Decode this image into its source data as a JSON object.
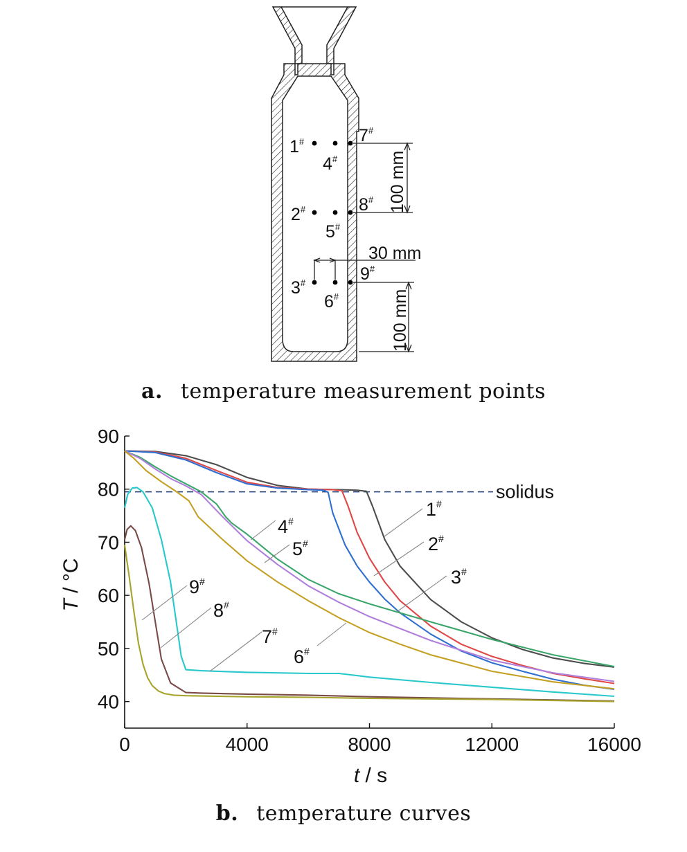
{
  "figure_a": {
    "caption_label": "a.",
    "caption_text": "temperature measurement points",
    "points": [
      {
        "name": "1",
        "mark": "#"
      },
      {
        "name": "4",
        "mark": "#"
      },
      {
        "name": "7",
        "mark": "#"
      },
      {
        "name": "2",
        "mark": "#"
      },
      {
        "name": "5",
        "mark": "#"
      },
      {
        "name": "8",
        "mark": "#"
      },
      {
        "name": "3",
        "mark": "#"
      },
      {
        "name": "6",
        "mark": "#"
      },
      {
        "name": "9",
        "mark": "#"
      }
    ],
    "dim_vertical_1": "100 mm",
    "dim_vertical_2": "100 mm",
    "dim_horizontal": "30 mm"
  },
  "figure_b": {
    "caption_label": "b.",
    "caption_text": "temperature curves"
  },
  "colors": {
    "c1": "#4d4d4d",
    "c2": "#e04848",
    "c3": "#2f6fd0",
    "c4": "#3aa66a",
    "c5": "#b07fdc",
    "c6": "#c4a024",
    "c7": "#28c8cc",
    "c8": "#7a4a46",
    "c9": "#a6a42c",
    "solidus": "#1f3a6e"
  },
  "chart_data": {
    "type": "line",
    "title": "",
    "xlabel_var": "t",
    "xlabel_unit": " / s",
    "ylabel_var": "T",
    "ylabel_unit": " / °C",
    "xlim": [
      0,
      16000
    ],
    "ylim": [
      35,
      90
    ],
    "xticks": [
      0,
      4000,
      8000,
      12000,
      16000
    ],
    "yticks": [
      40,
      50,
      60,
      70,
      80,
      90
    ],
    "reference_line": {
      "label": "solidus",
      "y": 79.5
    },
    "series": [
      {
        "name": "1#",
        "label": "1",
        "mark": "#",
        "color": "#4d4d4d",
        "x": [
          0,
          1000,
          2000,
          3000,
          4000,
          5000,
          6000,
          7000,
          7600,
          7900,
          8100,
          8500,
          9000,
          10000,
          11000,
          12000,
          13000,
          14000,
          15000,
          16000
        ],
        "y": [
          87.2,
          87.1,
          86.3,
          84.6,
          82.2,
          80.7,
          80.0,
          79.9,
          79.8,
          79.6,
          76.8,
          70.5,
          65.5,
          59.2,
          55.0,
          52.0,
          49.8,
          48.2,
          47.2,
          46.5
        ]
      },
      {
        "name": "2#",
        "label": "2",
        "mark": "#",
        "color": "#e04848",
        "x": [
          0,
          1000,
          2000,
          3000,
          4000,
          5000,
          6000,
          6800,
          7100,
          7300,
          7600,
          8000,
          8500,
          9000,
          10000,
          11000,
          12000,
          13000,
          14000,
          15000,
          16000
        ],
        "y": [
          87.2,
          87.0,
          85.8,
          83.5,
          81.3,
          80.3,
          80.0,
          79.9,
          79.7,
          76.8,
          71.8,
          67.0,
          62.5,
          59.0,
          54.2,
          50.8,
          48.5,
          46.8,
          45.3,
          44.3,
          43.4
        ]
      },
      {
        "name": "3#",
        "label": "3",
        "mark": "#",
        "color": "#2f6fd0",
        "x": [
          0,
          1000,
          2000,
          3000,
          4000,
          5000,
          6000,
          6500,
          6650,
          6800,
          7200,
          7600,
          8000,
          8500,
          9000,
          10000,
          11000,
          12000,
          13000,
          14000,
          15000,
          16000
        ],
        "y": [
          87.2,
          86.9,
          85.5,
          83.1,
          81.0,
          80.2,
          79.9,
          79.8,
          79.4,
          75.5,
          69.5,
          65.5,
          62.5,
          59.3,
          56.7,
          52.7,
          49.5,
          47.3,
          45.7,
          44.2,
          43.1,
          42.3
        ]
      },
      {
        "name": "4#",
        "label": "4",
        "mark": "#",
        "color": "#3aa66a",
        "x": [
          0,
          500,
          1000,
          1500,
          2000,
          2500,
          3000,
          3300,
          3500,
          4000,
          5000,
          6000,
          7000,
          8000,
          10000,
          12000,
          14000,
          16000
        ],
        "y": [
          87.2,
          86.0,
          84.2,
          82.5,
          81.0,
          79.5,
          77.2,
          74.8,
          73.6,
          71.5,
          66.8,
          63.0,
          60.3,
          58.4,
          55.0,
          51.7,
          48.8,
          46.6
        ]
      },
      {
        "name": "5#",
        "label": "5",
        "mark": "#",
        "color": "#b07fdc",
        "x": [
          0,
          500,
          1000,
          1500,
          2000,
          2500,
          2800,
          3200,
          4000,
          5000,
          6000,
          7000,
          8000,
          10000,
          12000,
          14000,
          16000
        ],
        "y": [
          87.2,
          85.8,
          83.8,
          82.0,
          80.6,
          79.0,
          77.2,
          74.8,
          70.3,
          65.8,
          61.8,
          58.7,
          56.0,
          51.5,
          47.8,
          45.4,
          43.8
        ]
      },
      {
        "name": "6#",
        "label": "6",
        "mark": "#",
        "color": "#c4a024",
        "x": [
          0,
          300,
          700,
          1200,
          1700,
          2100,
          2400,
          2700,
          3200,
          4000,
          5000,
          6000,
          7000,
          8000,
          9000,
          10000,
          12000,
          14000,
          16000
        ],
        "y": [
          87.2,
          85.8,
          83.5,
          81.4,
          79.5,
          77.8,
          74.8,
          73.2,
          70.5,
          66.5,
          62.5,
          59.0,
          55.8,
          53.0,
          50.8,
          48.8,
          45.7,
          43.7,
          42.4
        ]
      },
      {
        "name": "7#",
        "label": "7",
        "mark": "#",
        "color": "#28c8cc",
        "x": [
          0,
          100,
          250,
          400,
          600,
          900,
          1200,
          1500,
          1700,
          1850,
          2000,
          2500,
          4000,
          6000,
          7000,
          8000,
          10000,
          12000,
          14000,
          16000
        ],
        "y": [
          76.5,
          79.0,
          80.2,
          80.3,
          79.5,
          76.5,
          70.5,
          62.5,
          54.5,
          48.5,
          46.0,
          45.8,
          45.5,
          45.3,
          45.3,
          44.6,
          43.6,
          42.7,
          41.8,
          41.0
        ]
      },
      {
        "name": "8#",
        "label": "8",
        "mark": "#",
        "color": "#7a4a46",
        "x": [
          0,
          80,
          200,
          350,
          550,
          800,
          1000,
          1200,
          1500,
          2000,
          2500,
          4000,
          6000,
          8000,
          10000,
          12000,
          14000,
          16000
        ],
        "y": [
          70.5,
          72.4,
          73.1,
          72.2,
          69.0,
          62.2,
          55.0,
          48.0,
          43.5,
          41.7,
          41.6,
          41.4,
          41.2,
          40.9,
          40.7,
          40.5,
          40.3,
          40.1
        ]
      },
      {
        "name": "9#",
        "label": "9",
        "mark": "#",
        "color": "#a6a42c",
        "x": [
          0,
          150,
          300,
          450,
          600,
          750,
          900,
          1100,
          1300,
          1600,
          2000,
          4000,
          6000,
          8000,
          10000,
          12000,
          14000,
          16000
        ],
        "y": [
          69.5,
          63.5,
          57.0,
          51.0,
          47.0,
          44.5,
          43.0,
          42.0,
          41.5,
          41.2,
          41.1,
          40.9,
          40.8,
          40.6,
          40.5,
          40.4,
          40.2,
          40.0
        ]
      }
    ],
    "annotations": [
      {
        "target": "1#",
        "label": "1",
        "mark": "#"
      },
      {
        "target": "2#",
        "label": "2",
        "mark": "#"
      },
      {
        "target": "3#",
        "label": "3",
        "mark": "#"
      },
      {
        "target": "4#",
        "label": "4",
        "mark": "#"
      },
      {
        "target": "5#",
        "label": "5",
        "mark": "#"
      },
      {
        "target": "6#",
        "label": "6",
        "mark": "#"
      },
      {
        "target": "7#",
        "label": "7",
        "mark": "#"
      },
      {
        "target": "8#",
        "label": "8",
        "mark": "#"
      },
      {
        "target": "9#",
        "label": "9",
        "mark": "#"
      }
    ],
    "grid": false,
    "legend": "none"
  }
}
